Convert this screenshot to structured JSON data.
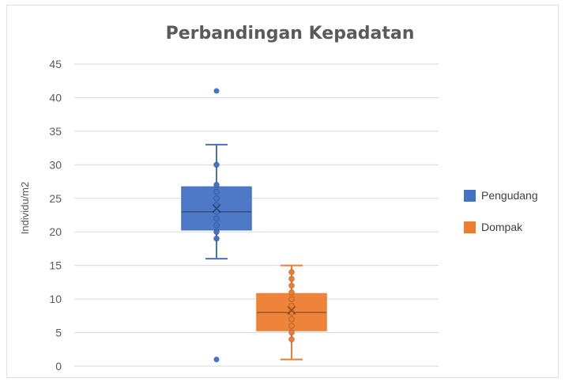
{
  "chart_data": {
    "type": "boxplot",
    "title": "Perbandingan Kepadatan",
    "ylabel": "Individu/m2",
    "xlabel": "",
    "ylim": [
      0,
      45
    ],
    "yticks": [
      0,
      5,
      10,
      15,
      20,
      25,
      30,
      35,
      40,
      45
    ],
    "grid": true,
    "legend_position": "right",
    "series": [
      {
        "name": "Pengudang",
        "color": "#4472c4",
        "whisker_low": 16,
        "q1": 20.3,
        "median": 23,
        "q3": 26.7,
        "whisker_high": 33,
        "mean": 23.5,
        "points": [
          19,
          20,
          21,
          22,
          23,
          24,
          25,
          26,
          27,
          30
        ],
        "outliers": [
          41,
          1
        ]
      },
      {
        "name": "Dompak",
        "color": "#ed7d31",
        "whisker_low": 1,
        "q1": 5.3,
        "median": 8,
        "q3": 10.8,
        "whisker_high": 15,
        "mean": 8.3,
        "points": [
          4,
          5,
          6,
          7,
          8,
          9,
          10,
          11,
          12,
          13,
          14
        ],
        "outliers": []
      }
    ]
  }
}
